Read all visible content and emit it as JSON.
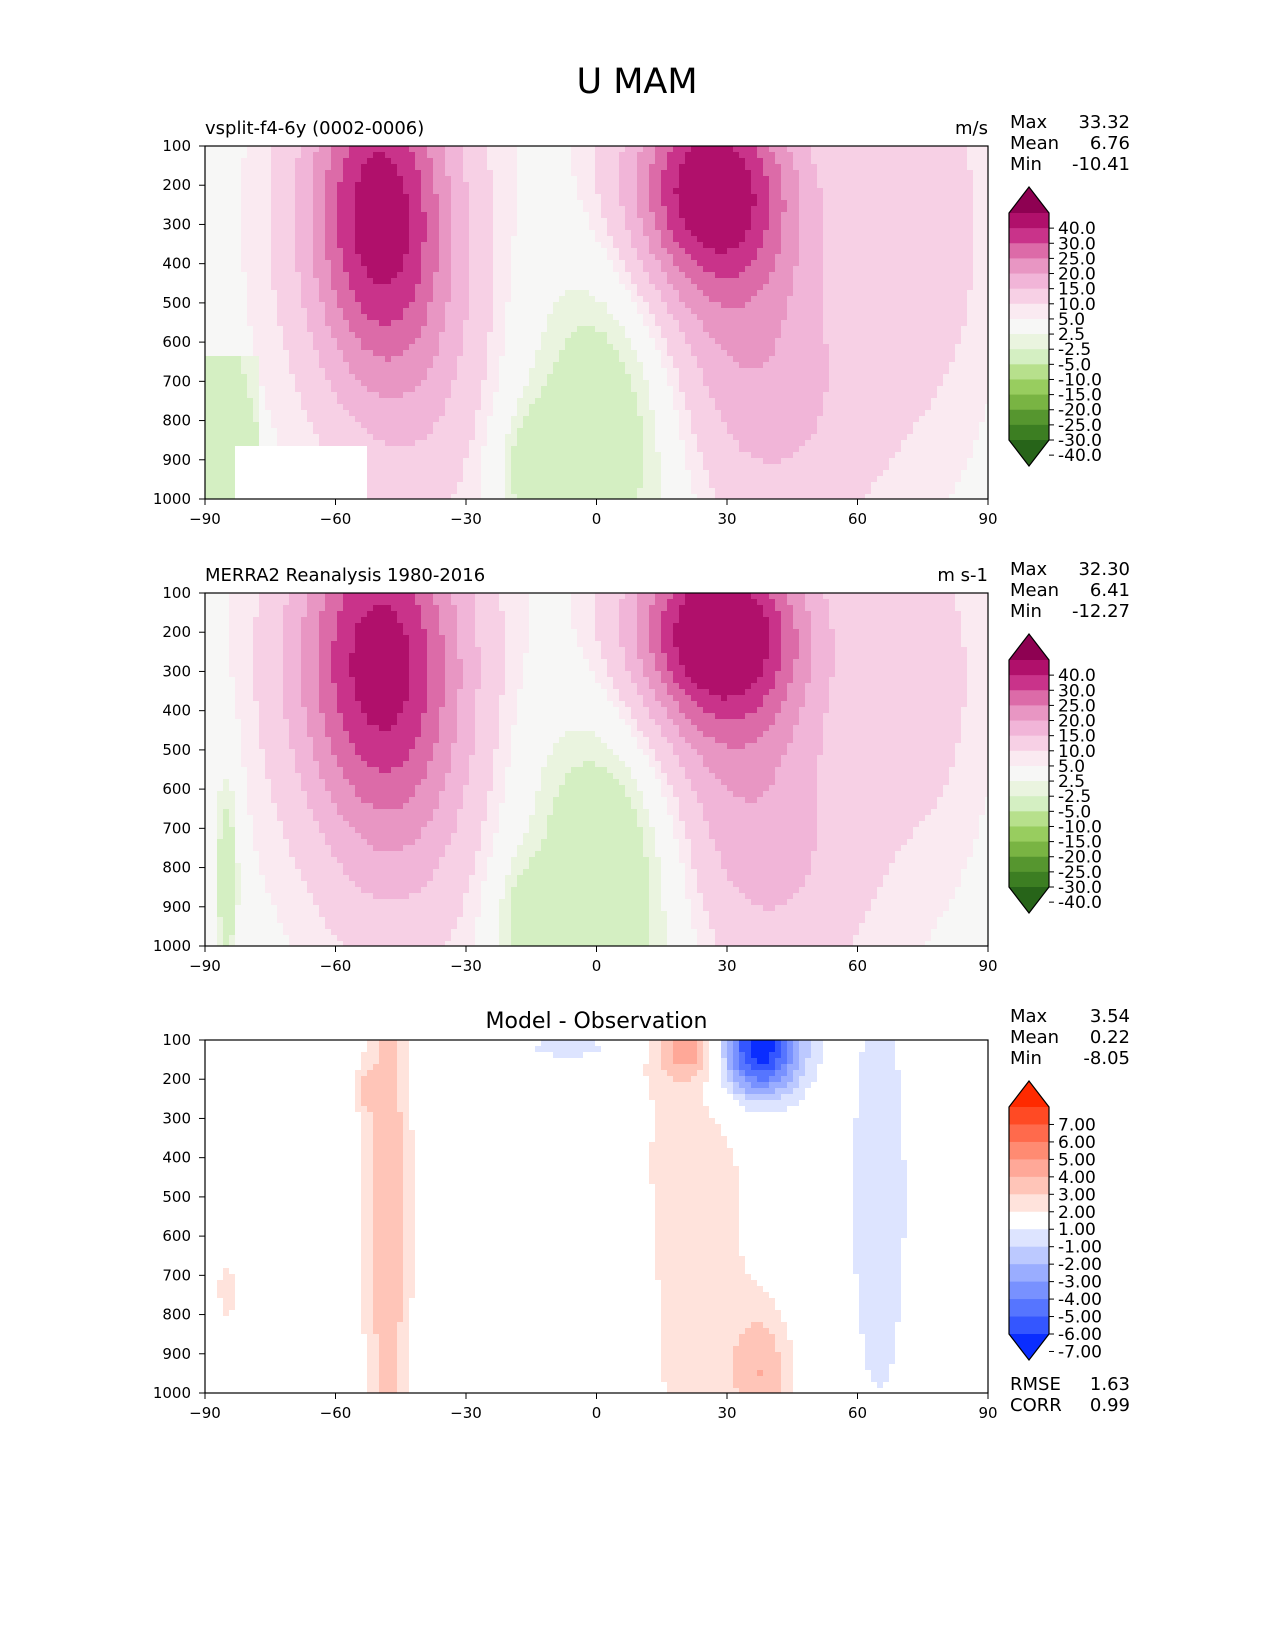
{
  "figure_title": "U MAM",
  "chart_data": [
    {
      "type": "heatmap",
      "title": "vsplit-f4-6y (0002-0006)",
      "units": "m/s",
      "x_ticks": [
        "−90",
        "−60",
        "−30",
        "0",
        "30",
        "60",
        "90"
      ],
      "y_ticks": [
        "100",
        "200",
        "300",
        "400",
        "500",
        "600",
        "700",
        "800",
        "900",
        "1000"
      ],
      "xlim": [
        -90,
        90
      ],
      "ylim": [
        1000,
        100
      ],
      "y_inverted": true,
      "stats": [
        {
          "label": "Max",
          "value": "33.32"
        },
        {
          "label": "Mean",
          "value": "6.76"
        },
        {
          "label": "Min",
          "value": "-10.41"
        }
      ],
      "colorbar": {
        "labels": [
          "40.0",
          "30.0",
          "25.0",
          "20.0",
          "15.0",
          "10.0",
          "5.0",
          "2.5",
          "-2.5",
          "-5.0",
          "-10.0",
          "-15.0",
          "-20.0",
          "-25.0",
          "-30.0",
          "-40.0"
        ],
        "colors": [
          "#8e0152",
          "#b0106b",
          "#c9338a",
          "#dc6ba8",
          "#e896c3",
          "#f1b5d8",
          "#f7d0e5",
          "#faeaf1",
          "#f7f7f6",
          "#eaf4df",
          "#d4efc2",
          "#b7e08c",
          "#98cd5f",
          "#79b443",
          "#56962f",
          "#3c7e22",
          "#276419"
        ]
      },
      "features": [
        {
          "name": "southern-jet-core",
          "lat": -51,
          "plev": 250,
          "value": 33.3
        },
        {
          "name": "northern-jet-core",
          "lat": 26,
          "plev": 200,
          "value": 31
        },
        {
          "name": "tropical-easterlies",
          "lat": 6,
          "plev": 800,
          "value": -10.4
        }
      ]
    },
    {
      "type": "heatmap",
      "title": "MERRA2 Reanalysis 1980-2016",
      "units": "m s-1",
      "x_ticks": [
        "−90",
        "−60",
        "−30",
        "0",
        "30",
        "60",
        "90"
      ],
      "y_ticks": [
        "100",
        "200",
        "300",
        "400",
        "500",
        "600",
        "700",
        "800",
        "900",
        "1000"
      ],
      "xlim": [
        -90,
        90
      ],
      "ylim": [
        1000,
        100
      ],
      "y_inverted": true,
      "stats": [
        {
          "label": "Max",
          "value": "32.30"
        },
        {
          "label": "Mean",
          "value": "6.41"
        },
        {
          "label": "Min",
          "value": "-12.27"
        }
      ],
      "colorbar": {
        "labels": [
          "40.0",
          "30.0",
          "25.0",
          "20.0",
          "15.0",
          "10.0",
          "5.0",
          "2.5",
          "-2.5",
          "-5.0",
          "-10.0",
          "-15.0",
          "-20.0",
          "-25.0",
          "-30.0",
          "-40.0"
        ],
        "colors": [
          "#8e0152",
          "#b0106b",
          "#c9338a",
          "#dc6ba8",
          "#e896c3",
          "#f1b5d8",
          "#f7d0e5",
          "#faeaf1",
          "#f7f7f6",
          "#eaf4df",
          "#d4efc2",
          "#b7e08c",
          "#98cd5f",
          "#79b443",
          "#56962f",
          "#3c7e22",
          "#276419"
        ]
      },
      "features": [
        {
          "name": "southern-jet-core",
          "lat": -50,
          "plev": 230,
          "value": 29
        },
        {
          "name": "northern-jet-core",
          "lat": 28,
          "plev": 180,
          "value": 32.3
        },
        {
          "name": "tropical-easterlies",
          "lat": 4,
          "plev": 750,
          "value": -12.3
        }
      ]
    },
    {
      "type": "heatmap",
      "title": "Model - Observation",
      "units": "",
      "x_ticks": [
        "−90",
        "−60",
        "−30",
        "0",
        "30",
        "60",
        "90"
      ],
      "y_ticks": [
        "100",
        "200",
        "300",
        "400",
        "500",
        "600",
        "700",
        "800",
        "900",
        "1000"
      ],
      "xlim": [
        -90,
        90
      ],
      "ylim": [
        1000,
        100
      ],
      "y_inverted": true,
      "stats": [
        {
          "label": "Max",
          "value": "3.54"
        },
        {
          "label": "Mean",
          "value": "0.22"
        },
        {
          "label": "Min",
          "value": "-8.05"
        }
      ],
      "extra_stats": [
        {
          "label": "RMSE",
          "value": "1.63"
        },
        {
          "label": "CORR",
          "value": "0.99"
        }
      ],
      "colorbar": {
        "labels": [
          "7.00",
          "6.00",
          "5.00",
          "4.00",
          "3.00",
          "2.00",
          "1.00",
          "-1.00",
          "-2.00",
          "-3.00",
          "-4.00",
          "-5.00",
          "-6.00",
          "-7.00"
        ],
        "colors": [
          "#ff2a00",
          "#ff4a24",
          "#ff6a4c",
          "#ff8b72",
          "#ffa898",
          "#ffc5b8",
          "#ffe3dc",
          "#ffffff",
          "#dde4ff",
          "#bcc9ff",
          "#9aadff",
          "#7891ff",
          "#5675ff",
          "#3456ff",
          "#0a2dff"
        ]
      },
      "features": [
        {
          "name": "southern-positive-band",
          "lat": -48,
          "plev": 500,
          "value": 2.5
        },
        {
          "name": "northern-positive-band",
          "lat": 28,
          "plev": 600,
          "value": 2
        },
        {
          "name": "upper-negative-core",
          "lat": 37,
          "plev": 130,
          "value": -8.05
        },
        {
          "name": "northern-negative-band",
          "lat": 65,
          "plev": 500,
          "value": -1.5
        }
      ]
    }
  ]
}
